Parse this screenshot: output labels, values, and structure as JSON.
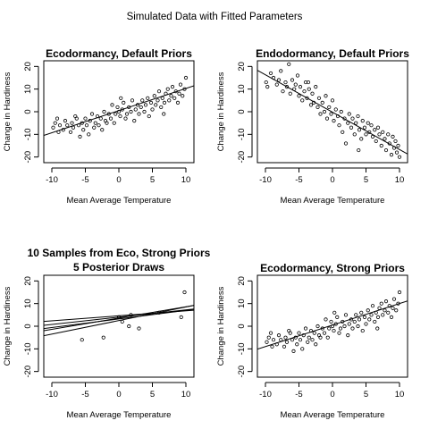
{
  "title": "Simulated Data with Fitted Parameters",
  "chart_data": [
    {
      "type": "scatter",
      "title": "Ecodormancy, Default Priors",
      "xlabel": "Mean Average Temperature",
      "ylabel": "Change in Hardiness",
      "xlim": [
        -11.2,
        11.2
      ],
      "ylim": [
        -22.5,
        22.5
      ],
      "xticks": [
        -10,
        -5,
        0,
        5,
        10
      ],
      "yticks": [
        -20,
        -10,
        0,
        10,
        20
      ],
      "grid": false,
      "points": [
        [
          -9.8,
          -7
        ],
        [
          -9.5,
          -5
        ],
        [
          -9.2,
          -3
        ],
        [
          -8.8,
          -6
        ],
        [
          -8.3,
          -8
        ],
        [
          -8,
          -4
        ],
        [
          -7.7,
          -6
        ],
        [
          -7.2,
          -9
        ],
        [
          -7,
          -5
        ],
        [
          -6.8,
          -7
        ],
        [
          -6.3,
          -3
        ],
        [
          -6,
          -6
        ],
        [
          -5.8,
          -11
        ],
        [
          -5.5,
          -5
        ],
        [
          -5.3,
          -8
        ],
        [
          -5,
          -3
        ],
        [
          -4.8,
          -6
        ],
        [
          -4.5,
          -10
        ],
        [
          -4.3,
          -4
        ],
        [
          -4,
          -1
        ],
        [
          -3.7,
          -7
        ],
        [
          -3.5,
          -5
        ],
        [
          -3.2,
          -2
        ],
        [
          -3,
          -6
        ],
        [
          -2.7,
          -3
        ],
        [
          -2.5,
          -8
        ],
        [
          -2.2,
          0
        ],
        [
          -2,
          -4
        ],
        [
          -1.8,
          -5
        ],
        [
          -1.5,
          -1
        ],
        [
          -1.2,
          -3
        ],
        [
          -1,
          3
        ],
        [
          -0.7,
          -5
        ],
        [
          -0.5,
          -1
        ],
        [
          -0.2,
          2
        ],
        [
          0,
          0
        ],
        [
          0.2,
          -2
        ],
        [
          0.5,
          1
        ],
        [
          0.7,
          4
        ],
        [
          1,
          -3
        ],
        [
          1.2,
          -1
        ],
        [
          1.5,
          2
        ],
        [
          1.8,
          0
        ],
        [
          2,
          5
        ],
        [
          2.3,
          -4
        ],
        [
          2.5,
          1
        ],
        [
          2.8,
          3
        ],
        [
          3,
          -1
        ],
        [
          3.3,
          2
        ],
        [
          3.5,
          5
        ],
        [
          3.8,
          0
        ],
        [
          4,
          3
        ],
        [
          4.3,
          6
        ],
        [
          4.5,
          -2
        ],
        [
          4.8,
          4
        ],
        [
          5,
          1
        ],
        [
          5.3,
          7
        ],
        [
          5.5,
          3
        ],
        [
          5.8,
          5
        ],
        [
          6,
          9
        ],
        [
          6.3,
          2
        ],
        [
          6.5,
          6
        ],
        [
          6.8,
          4
        ],
        [
          7,
          8
        ],
        [
          7.3,
          10
        ],
        [
          7.5,
          5
        ],
        [
          7.8,
          7
        ],
        [
          8,
          11
        ],
        [
          8.3,
          6
        ],
        [
          8.5,
          9
        ],
        [
          8.8,
          4
        ],
        [
          9,
          8
        ],
        [
          9.2,
          12
        ],
        [
          9.5,
          7
        ],
        [
          9.8,
          10
        ],
        [
          10,
          15
        ],
        [
          -9,
          -9
        ],
        [
          0.3,
          6
        ],
        [
          -6.5,
          -2
        ],
        [
          6.7,
          -1
        ]
      ],
      "lines": [
        {
          "intercept": 0.5,
          "slope": 0.98
        }
      ]
    },
    {
      "type": "scatter",
      "title": "Endodormancy, Default Priors",
      "xlabel": "Mean Average Temperature",
      "ylabel": "Change in Hardiness",
      "xlim": [
        -11.2,
        11.2
      ],
      "ylim": [
        -22.5,
        22.5
      ],
      "xticks": [
        -10,
        -5,
        0,
        5,
        10
      ],
      "yticks": [
        -20,
        -10,
        0,
        10,
        20
      ],
      "grid": false,
      "points": [
        [
          -9.9,
          13
        ],
        [
          -9.7,
          11
        ],
        [
          -9.2,
          17
        ],
        [
          -8.8,
          15
        ],
        [
          -8.3,
          12
        ],
        [
          -8,
          14
        ],
        [
          -7.7,
          18
        ],
        [
          -7.4,
          9
        ],
        [
          -7,
          13
        ],
        [
          -6.8,
          11
        ],
        [
          -6.5,
          21
        ],
        [
          -6.3,
          8
        ],
        [
          -6,
          14
        ],
        [
          -5.7,
          10
        ],
        [
          -5.5,
          12
        ],
        [
          -5.2,
          16
        ],
        [
          -5,
          7
        ],
        [
          -4.8,
          11
        ],
        [
          -4.5,
          5
        ],
        [
          -4.2,
          9
        ],
        [
          -4,
          13
        ],
        [
          -3.8,
          6
        ],
        [
          -3.5,
          10
        ],
        [
          -3.2,
          3
        ],
        [
          -3,
          8
        ],
        [
          -2.8,
          4
        ],
        [
          -2.5,
          11
        ],
        [
          -2.2,
          2
        ],
        [
          -2,
          6
        ],
        [
          -1.8,
          -1
        ],
        [
          -1.5,
          4
        ],
        [
          -1.2,
          0
        ],
        [
          -1,
          7
        ],
        [
          -0.8,
          -3
        ],
        [
          -0.5,
          2
        ],
        [
          -0.2,
          -1
        ],
        [
          0,
          5
        ],
        [
          0.2,
          -4
        ],
        [
          0.5,
          1
        ],
        [
          0.8,
          -2
        ],
        [
          1,
          -6
        ],
        [
          1.3,
          0
        ],
        [
          1.5,
          -9
        ],
        [
          1.8,
          -3
        ],
        [
          2,
          -14
        ],
        [
          2.3,
          -5
        ],
        [
          2.5,
          -1
        ],
        [
          2.8,
          -7
        ],
        [
          3,
          -3
        ],
        [
          3.3,
          -10
        ],
        [
          3.5,
          -5
        ],
        [
          3.8,
          -2
        ],
        [
          4,
          -8
        ],
        [
          4.3,
          -12
        ],
        [
          4.5,
          -4
        ],
        [
          4.8,
          -7
        ],
        [
          5,
          -10
        ],
        [
          5.3,
          -5
        ],
        [
          5.5,
          -9
        ],
        [
          5.8,
          -6
        ],
        [
          6,
          -11
        ],
        [
          6.3,
          -8
        ],
        [
          6.5,
          -13
        ],
        [
          6.8,
          -7
        ],
        [
          7,
          -10
        ],
        [
          7.3,
          -15
        ],
        [
          7.5,
          -9
        ],
        [
          7.8,
          -12
        ],
        [
          8,
          -17
        ],
        [
          8.3,
          -10
        ],
        [
          8.5,
          -14
        ],
        [
          8.8,
          -19
        ],
        [
          9,
          -11
        ],
        [
          9.2,
          -16
        ],
        [
          9.4,
          -13
        ],
        [
          9.6,
          -18
        ],
        [
          9.8,
          -15
        ],
        [
          10,
          -20
        ],
        [
          -3.6,
          13
        ],
        [
          3.9,
          -17
        ]
      ],
      "lines": [
        {
          "intercept": -0.2,
          "slope": -1.65
        }
      ]
    },
    {
      "type": "scatter",
      "title": "10 Samples from Eco, Strong Priors",
      "subtitle": "5 Posterior Draws",
      "xlabel": "Mean Average Temperature",
      "ylabel": "Change in Hardiness",
      "xlim": [
        -11.2,
        11.2
      ],
      "ylim": [
        -22.5,
        22.5
      ],
      "xticks": [
        -10,
        -5,
        0,
        5,
        10
      ],
      "yticks": [
        -20,
        -10,
        0,
        10,
        20
      ],
      "grid": false,
      "points": [
        [
          -5.5,
          -6
        ],
        [
          -2.3,
          -5
        ],
        [
          0,
          4
        ],
        [
          0.5,
          2
        ],
        [
          1.5,
          0
        ],
        [
          1.8,
          5
        ],
        [
          3,
          -1
        ],
        [
          6,
          6
        ],
        [
          9.3,
          4
        ],
        [
          9.8,
          15
        ]
      ],
      "lines": [
        {
          "intercept": 4.6,
          "slope": 0.22
        },
        {
          "intercept": 3.2,
          "slope": 0.38
        },
        {
          "intercept": 2.5,
          "slope": 0.6
        },
        {
          "intercept": 3.6,
          "slope": 0.5
        },
        {
          "intercept": 4.0,
          "slope": 0.32
        }
      ]
    },
    {
      "type": "scatter",
      "title": "Ecodormancy, Strong Priors",
      "xlabel": "Mean Average Temperature",
      "ylabel": "Change in Hardiness",
      "xlim": [
        -11.2,
        11.2
      ],
      "ylim": [
        -22.5,
        22.5
      ],
      "xticks": [
        -10,
        -5,
        0,
        5,
        10
      ],
      "yticks": [
        -20,
        -10,
        0,
        10,
        20
      ],
      "grid": false,
      "points": [
        [
          -9.8,
          -7
        ],
        [
          -9.5,
          -5
        ],
        [
          -9.2,
          -3
        ],
        [
          -8.8,
          -6
        ],
        [
          -8.3,
          -8
        ],
        [
          -8,
          -4
        ],
        [
          -7.7,
          -6
        ],
        [
          -7.2,
          -9
        ],
        [
          -7,
          -5
        ],
        [
          -6.8,
          -7
        ],
        [
          -6.3,
          -3
        ],
        [
          -6,
          -6
        ],
        [
          -5.8,
          -11
        ],
        [
          -5.5,
          -5
        ],
        [
          -5.3,
          -8
        ],
        [
          -5,
          -3
        ],
        [
          -4.8,
          -6
        ],
        [
          -4.5,
          -10
        ],
        [
          -4.3,
          -4
        ],
        [
          -4,
          -1
        ],
        [
          -3.7,
          -7
        ],
        [
          -3.5,
          -5
        ],
        [
          -3.2,
          -2
        ],
        [
          -3,
          -6
        ],
        [
          -2.7,
          -3
        ],
        [
          -2.5,
          -8
        ],
        [
          -2.2,
          0
        ],
        [
          -2,
          -4
        ],
        [
          -1.8,
          -5
        ],
        [
          -1.5,
          -1
        ],
        [
          -1.2,
          -3
        ],
        [
          -1,
          3
        ],
        [
          -0.7,
          -5
        ],
        [
          -0.5,
          -1
        ],
        [
          -0.2,
          2
        ],
        [
          0,
          0
        ],
        [
          0.2,
          -2
        ],
        [
          0.5,
          1
        ],
        [
          0.7,
          4
        ],
        [
          1,
          -3
        ],
        [
          1.2,
          -1
        ],
        [
          1.5,
          2
        ],
        [
          1.8,
          0
        ],
        [
          2,
          5
        ],
        [
          2.3,
          -4
        ],
        [
          2.5,
          1
        ],
        [
          2.8,
          3
        ],
        [
          3,
          -1
        ],
        [
          3.3,
          2
        ],
        [
          3.5,
          5
        ],
        [
          3.8,
          0
        ],
        [
          4,
          3
        ],
        [
          4.3,
          6
        ],
        [
          4.5,
          -2
        ],
        [
          4.8,
          4
        ],
        [
          5,
          1
        ],
        [
          5.3,
          7
        ],
        [
          5.5,
          3
        ],
        [
          5.8,
          5
        ],
        [
          6,
          9
        ],
        [
          6.3,
          2
        ],
        [
          6.5,
          6
        ],
        [
          6.8,
          4
        ],
        [
          7,
          8
        ],
        [
          7.3,
          10
        ],
        [
          7.5,
          5
        ],
        [
          7.8,
          7
        ],
        [
          8,
          11
        ],
        [
          8.3,
          6
        ],
        [
          8.5,
          9
        ],
        [
          8.8,
          4
        ],
        [
          9,
          8
        ],
        [
          9.2,
          12
        ],
        [
          9.5,
          7
        ],
        [
          9.8,
          10
        ],
        [
          10,
          15
        ],
        [
          -9,
          -9
        ],
        [
          0.3,
          6
        ],
        [
          -6.5,
          -2
        ],
        [
          6.7,
          -1
        ]
      ],
      "lines": [
        {
          "intercept": 0.5,
          "slope": 0.95
        }
      ]
    }
  ]
}
